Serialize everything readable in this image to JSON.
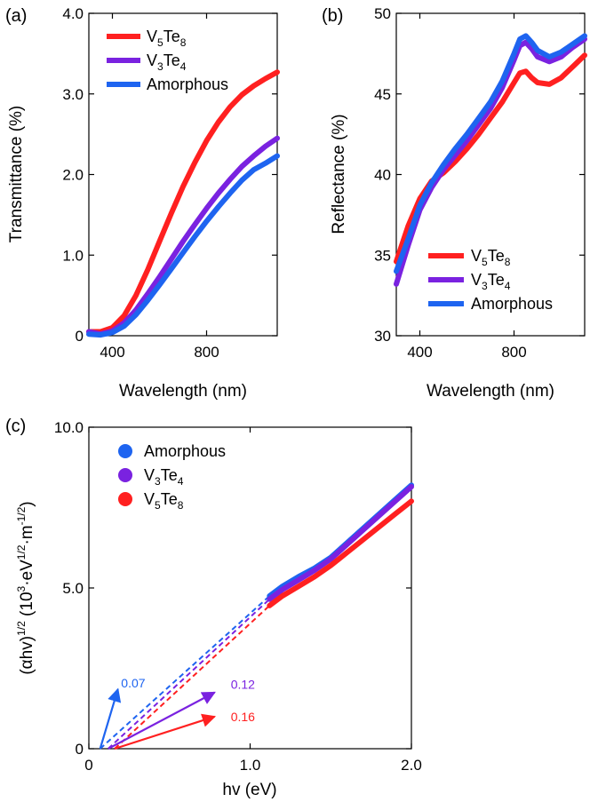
{
  "colors": {
    "V5Te8": "#ff2020",
    "V3Te4": "#7a22e0",
    "Amorphous": "#1e64f0"
  },
  "chart_data": [
    {
      "panel": "(a)",
      "type": "line",
      "xlabel": "Wavelength (nm)",
      "ylabel": "Transmittance (%)",
      "xlim": [
        300,
        1100
      ],
      "ylim": [
        0,
        4.0
      ],
      "xticks": [
        400,
        800
      ],
      "yticks": [
        0,
        1.0,
        2.0,
        3.0,
        4.0
      ],
      "ytick_labels": [
        "0",
        "1.0",
        "2.0",
        "3.0",
        "4.0"
      ],
      "legend_position": "top-left",
      "series": [
        {
          "key": "V5Te8",
          "name": "V5Te8",
          "legend": {
            "base1": "V",
            "sub1": "5",
            "base2": "Te",
            "sub2": "8"
          },
          "x": [
            300,
            350,
            400,
            450,
            500,
            550,
            600,
            650,
            700,
            750,
            800,
            850,
            900,
            950,
            1000,
            1050,
            1100
          ],
          "y": [
            0.05,
            0.05,
            0.1,
            0.25,
            0.5,
            0.82,
            1.17,
            1.52,
            1.85,
            2.15,
            2.42,
            2.65,
            2.84,
            2.99,
            3.1,
            3.19,
            3.27
          ]
        },
        {
          "key": "V3Te4",
          "name": "V3Te4",
          "legend": {
            "base1": "V",
            "sub1": "3",
            "base2": "Te",
            "sub2": "4"
          },
          "x": [
            300,
            350,
            400,
            450,
            500,
            550,
            600,
            650,
            700,
            750,
            800,
            850,
            900,
            950,
            1000,
            1050,
            1100
          ],
          "y": [
            0.05,
            0.02,
            0.06,
            0.16,
            0.32,
            0.52,
            0.73,
            0.95,
            1.17,
            1.38,
            1.58,
            1.77,
            1.94,
            2.1,
            2.23,
            2.35,
            2.45
          ]
        },
        {
          "key": "Amorphous",
          "name": "Amorphous",
          "legend": {
            "base1": "Amorphous",
            "sub1": "",
            "base2": "",
            "sub2": ""
          },
          "x": [
            300,
            350,
            400,
            450,
            500,
            550,
            600,
            650,
            700,
            750,
            800,
            850,
            900,
            950,
            1000,
            1050,
            1100
          ],
          "y": [
            0.02,
            0.01,
            0.04,
            0.12,
            0.26,
            0.44,
            0.63,
            0.83,
            1.03,
            1.23,
            1.42,
            1.6,
            1.77,
            1.93,
            2.06,
            2.14,
            2.23
          ]
        }
      ]
    },
    {
      "panel": "(b)",
      "type": "line",
      "xlabel": "Wavelength (nm)",
      "ylabel": "Reflectance (%)",
      "xlim": [
        300,
        1100
      ],
      "ylim": [
        30,
        50
      ],
      "xticks": [
        400,
        800
      ],
      "yticks": [
        30,
        35,
        40,
        45,
        50
      ],
      "ytick_labels": [
        "30",
        "35",
        "40",
        "45",
        "50"
      ],
      "legend_position": "bottom-right",
      "series": [
        {
          "key": "V5Te8",
          "name": "V5Te8",
          "legend": {
            "base1": "V",
            "sub1": "5",
            "base2": "Te",
            "sub2": "8"
          },
          "x": [
            300,
            350,
            400,
            450,
            500,
            550,
            600,
            650,
            700,
            750,
            800,
            825,
            850,
            875,
            900,
            950,
            1000,
            1050,
            1100
          ],
          "y": [
            34.6,
            36.8,
            38.5,
            39.6,
            40.1,
            40.8,
            41.6,
            42.5,
            43.5,
            44.5,
            45.7,
            46.3,
            46.4,
            46.0,
            45.7,
            45.6,
            46.0,
            46.7,
            47.4
          ]
        },
        {
          "key": "V3Te4",
          "name": "V3Te4",
          "legend": {
            "base1": "V",
            "sub1": "3",
            "base2": "Te",
            "sub2": "4"
          },
          "x": [
            300,
            350,
            400,
            450,
            500,
            550,
            600,
            650,
            700,
            750,
            800,
            825,
            850,
            875,
            900,
            950,
            1000,
            1050,
            1100
          ],
          "y": [
            33.2,
            35.6,
            37.8,
            39.2,
            40.3,
            41.2,
            42.1,
            43.1,
            44.1,
            45.4,
            47.1,
            48.0,
            48.2,
            47.8,
            47.3,
            47.0,
            47.3,
            47.9,
            48.4
          ]
        },
        {
          "key": "Amorphous",
          "name": "Amorphous",
          "legend": {
            "base1": "Amorphous",
            "sub1": "",
            "base2": "",
            "sub2": ""
          },
          "x": [
            300,
            350,
            400,
            450,
            500,
            550,
            600,
            650,
            700,
            750,
            800,
            825,
            850,
            875,
            900,
            950,
            1000,
            1050,
            1100
          ],
          "y": [
            34.0,
            36.0,
            38.1,
            39.5,
            40.6,
            41.6,
            42.5,
            43.5,
            44.5,
            45.8,
            47.5,
            48.4,
            48.6,
            48.2,
            47.7,
            47.3,
            47.6,
            48.1,
            48.6
          ]
        }
      ]
    },
    {
      "panel": "(c)",
      "type": "line",
      "xlabel": "hv (eV)",
      "ylabel": {
        "pre": "(αhv)",
        "sup1": "1/2",
        "mid": " (10",
        "sup2": "3",
        "mid2": "·eV",
        "sup3": "1/2",
        "mid3": "·m",
        "sup4": "-1/2",
        "post": ")"
      },
      "xlim": [
        0,
        2.0
      ],
      "ylim": [
        0,
        10.0
      ],
      "xticks": [
        0,
        1.0,
        2.0
      ],
      "xtick_labels": [
        "0",
        "1.0",
        "2.0"
      ],
      "yticks": [
        0,
        5.0,
        10.0
      ],
      "ytick_labels": [
        "0",
        "5.0",
        "10.0"
      ],
      "legend_position": "top-left",
      "series": [
        {
          "key": "Amorphous",
          "name": "Amorphous",
          "legend": {
            "base1": "Amorphous",
            "sub1": "",
            "base2": "",
            "sub2": ""
          },
          "x": [
            1.12,
            1.2,
            1.3,
            1.4,
            1.5,
            1.6,
            1.7,
            1.8,
            1.9,
            2.0
          ],
          "y": [
            4.75,
            5.05,
            5.35,
            5.62,
            5.95,
            6.4,
            6.85,
            7.3,
            7.75,
            8.2
          ],
          "fit": {
            "x": [
              0.07,
              1.12
            ],
            "y": [
              0,
              4.75
            ]
          }
        },
        {
          "key": "V3Te4",
          "name": "V3Te4",
          "legend": {
            "base1": "V",
            "sub1": "3",
            "base2": "Te",
            "sub2": "4"
          },
          "x": [
            1.12,
            1.2,
            1.3,
            1.4,
            1.5,
            1.6,
            1.7,
            1.8,
            1.9,
            2.0
          ],
          "y": [
            4.65,
            4.95,
            5.25,
            5.55,
            5.9,
            6.35,
            6.8,
            7.25,
            7.7,
            8.15
          ],
          "fit": {
            "x": [
              0.12,
              1.12
            ],
            "y": [
              0,
              4.65
            ]
          }
        },
        {
          "key": "V5Te8",
          "name": "V5Te8",
          "legend": {
            "base1": "V",
            "sub1": "5",
            "base2": "Te",
            "sub2": "8"
          },
          "x": [
            1.12,
            1.2,
            1.3,
            1.4,
            1.5,
            1.6,
            1.7,
            1.8,
            1.9,
            2.0
          ],
          "y": [
            4.45,
            4.75,
            5.05,
            5.35,
            5.7,
            6.1,
            6.5,
            6.9,
            7.3,
            7.7
          ],
          "fit": {
            "x": [
              0.16,
              1.12
            ],
            "y": [
              0,
              4.45
            ]
          }
        }
      ],
      "annotations": [
        {
          "key": "Amorphous",
          "text": "0.07",
          "from": [
            0.07,
            0
          ],
          "to": [
            0.18,
            1.85
          ],
          "label_at": [
            0.2,
            2.05
          ]
        },
        {
          "key": "V3Te4",
          "text": "0.12",
          "from": [
            0.12,
            0
          ],
          "to": [
            0.78,
            1.75
          ],
          "label_at": [
            0.88,
            2.0
          ]
        },
        {
          "key": "V5Te8",
          "text": "0.16",
          "from": [
            0.16,
            0
          ],
          "to": [
            0.78,
            1.0
          ],
          "label_at": [
            0.88,
            1.0
          ]
        }
      ]
    }
  ]
}
